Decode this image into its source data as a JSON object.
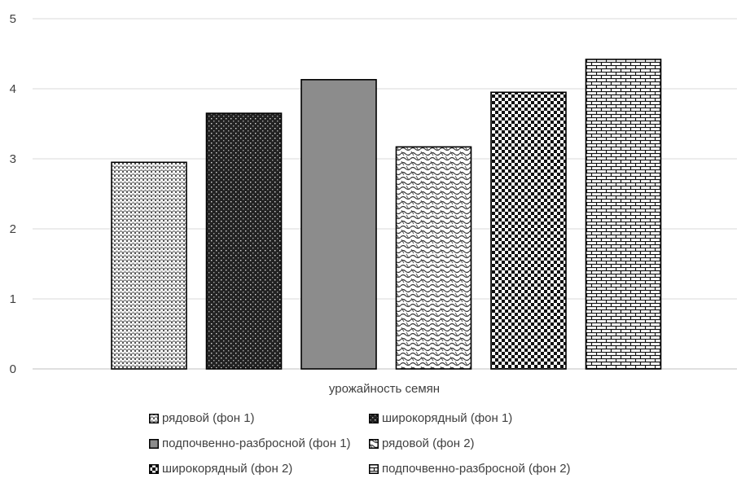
{
  "chart_data": {
    "type": "bar",
    "title": "",
    "xlabel": "урожайность семян",
    "ylabel": "",
    "categories": [
      "урожайность семян"
    ],
    "ylim": [
      0,
      5
    ],
    "yticks": [
      "0",
      "1",
      "2",
      "3",
      "4",
      "5"
    ],
    "grid": true,
    "legend_position": "bottom",
    "series": [
      {
        "name": "рядовой (фон 1)",
        "values": [
          2.95
        ],
        "pattern": "dots-grid"
      },
      {
        "name": "широкорядный (фон 1)",
        "values": [
          3.65
        ],
        "pattern": "dark-dots"
      },
      {
        "name": "подпочвенно-разбросной (фон 1)",
        "values": [
          4.13
        ],
        "pattern": "solid-gray"
      },
      {
        "name": "рядовой (фон 2)",
        "values": [
          3.17
        ],
        "pattern": "wave"
      },
      {
        "name": "широкорядный (фон 2)",
        "values": [
          3.95
        ],
        "pattern": "checker"
      },
      {
        "name": "подпочвенно-разбросной (фон 2)",
        "values": [
          4.42
        ],
        "pattern": "brick"
      }
    ]
  }
}
